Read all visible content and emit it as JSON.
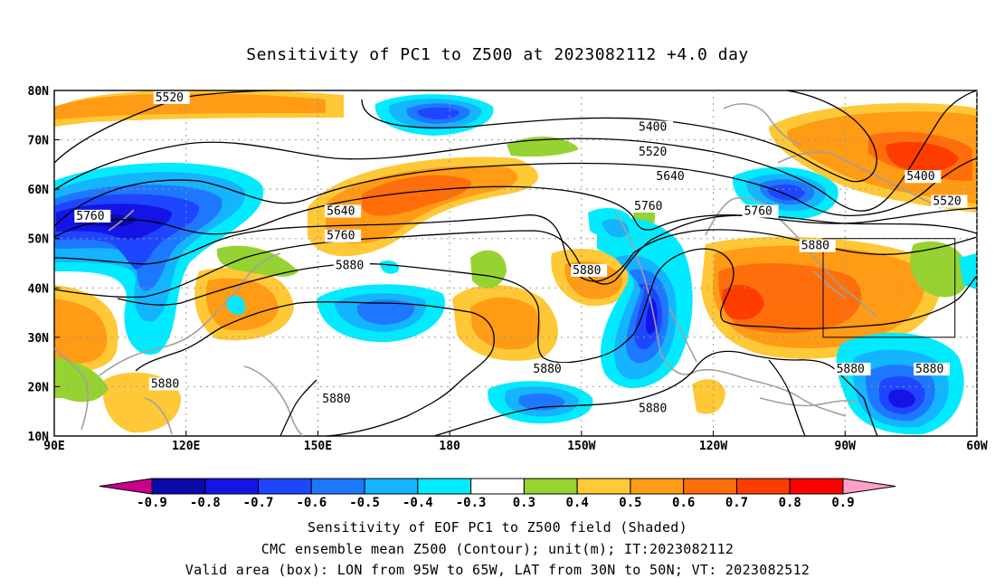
{
  "title": "Sensitivity of PC1 to Z500 at 2023082112 +4.0 day",
  "captions": [
    "Sensitivity of EOF PC1 to Z500 field (Shaded)",
    "CMC ensemble mean Z500 (Contour); unit(m); IT:2023082112",
    "Valid area (box): LON from 95W to 65W, LAT from 30N to 50N; VT: 2023082512"
  ],
  "map": {
    "lon_range": [
      90,
      300
    ],
    "lat_range": [
      10,
      80
    ],
    "lon_ticks": [
      {
        "lon": 90,
        "label": "90E"
      },
      {
        "lon": 120,
        "label": "120E"
      },
      {
        "lon": 150,
        "label": "150E"
      },
      {
        "lon": 180,
        "label": "180"
      },
      {
        "lon": 210,
        "label": "150W"
      },
      {
        "lon": 240,
        "label": "120W"
      },
      {
        "lon": 270,
        "label": "90W"
      },
      {
        "lon": 300,
        "label": "60W"
      }
    ],
    "lat_ticks": [
      {
        "lat": 10,
        "label": "10N"
      },
      {
        "lat": 20,
        "label": "20N"
      },
      {
        "lat": 30,
        "label": "30N"
      },
      {
        "lat": 40,
        "label": "40N"
      },
      {
        "lat": 50,
        "label": "50N"
      },
      {
        "lat": 60,
        "label": "60N"
      },
      {
        "lat": 70,
        "label": "70N"
      },
      {
        "lat": 80,
        "label": "80N"
      }
    ],
    "valid_box": {
      "lon": [
        265,
        295
      ],
      "lat": [
        30,
        50
      ]
    },
    "contour_labels": [
      {
        "text": "5520",
        "lon": 113,
        "lat": 78
      },
      {
        "text": "5400",
        "lon": 223,
        "lat": 72
      },
      {
        "text": "5520",
        "lon": 223,
        "lat": 67
      },
      {
        "text": "5640",
        "lon": 227,
        "lat": 62
      },
      {
        "text": "5400",
        "lon": 284,
        "lat": 62
      },
      {
        "text": "5520",
        "lon": 290,
        "lat": 57
      },
      {
        "text": "5760",
        "lon": 95,
        "lat": 54
      },
      {
        "text": "5640",
        "lon": 152,
        "lat": 55
      },
      {
        "text": "5760",
        "lon": 222,
        "lat": 56
      },
      {
        "text": "5760",
        "lon": 247,
        "lat": 55
      },
      {
        "text": "5760",
        "lon": 152,
        "lat": 50
      },
      {
        "text": "5880",
        "lon": 260,
        "lat": 48
      },
      {
        "text": "5880",
        "lon": 154,
        "lat": 44
      },
      {
        "text": "5880",
        "lon": 208,
        "lat": 43
      },
      {
        "text": "5880",
        "lon": 112,
        "lat": 20
      },
      {
        "text": "5880",
        "lon": 151,
        "lat": 17
      },
      {
        "text": "5880",
        "lon": 199,
        "lat": 23
      },
      {
        "text": "5880",
        "lon": 223,
        "lat": 15
      },
      {
        "text": "5880",
        "lon": 268,
        "lat": 23
      },
      {
        "text": "5880",
        "lon": 286,
        "lat": 23
      }
    ]
  },
  "colorbar": {
    "labels": [
      "-0.9",
      "-0.8",
      "-0.7",
      "-0.6",
      "-0.5",
      "-0.4",
      "-0.3",
      "0.3",
      "0.4",
      "0.5",
      "0.6",
      "0.7",
      "0.8",
      "0.9"
    ],
    "colors": [
      "#0a0aa8",
      "#1414e6",
      "#1e46ff",
      "#1e78ff",
      "#14b4ff",
      "#00ebff",
      "#ffffff",
      "#96d232",
      "#ffc837",
      "#ff9b14",
      "#ff6e0a",
      "#ff3c00",
      "#ff0000"
    ],
    "low_arrow_color": "#c8008c",
    "high_arrow_color": "#ffa0c8"
  }
}
